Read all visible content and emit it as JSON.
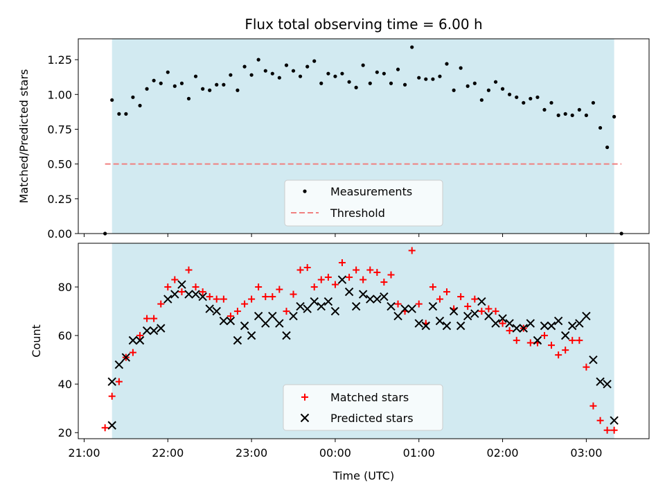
{
  "chart_data": {
    "type": "scatter",
    "title": "Flux total observing time = 6.00 h",
    "colors": {
      "observing_window": "#add8e6",
      "measurements": "#000000",
      "threshold": "#f08080",
      "matched": "#ff0000",
      "predicted": "#000000"
    },
    "shared_x": {
      "xlabel": "Time (UTC)",
      "tick_labels": [
        "21:00",
        "22:00",
        "23:00",
        "00:00",
        "01:00",
        "02:00",
        "03:00"
      ],
      "tick_hours": [
        0,
        1,
        2,
        3,
        4,
        5,
        6
      ],
      "hours_from_2100": [
        0.25,
        0.333,
        0.417,
        0.5,
        0.583,
        0.667,
        0.75,
        0.833,
        0.917,
        1.0,
        1.083,
        1.167,
        1.25,
        1.333,
        1.417,
        1.5,
        1.583,
        1.667,
        1.75,
        1.833,
        1.917,
        2.0,
        2.083,
        2.167,
        2.25,
        2.333,
        2.417,
        2.5,
        2.583,
        2.667,
        2.75,
        2.833,
        2.917,
        3.0,
        3.083,
        3.167,
        3.25,
        3.333,
        3.417,
        3.5,
        3.583,
        3.667,
        3.75,
        3.833,
        3.917,
        4.0,
        4.083,
        4.167,
        4.25,
        4.333,
        4.417,
        4.5,
        4.583,
        4.667,
        4.75,
        4.833,
        4.917,
        5.0,
        5.083,
        5.167,
        5.25,
        5.333,
        5.417,
        5.5,
        5.583,
        5.667,
        5.75,
        5.833,
        5.917,
        6.0,
        6.083,
        6.167,
        6.25,
        6.333
      ],
      "xlim": [
        -0.07,
        6.75
      ]
    },
    "observing_window_hours": [
      0.333,
      6.333
    ],
    "panels": [
      {
        "name": "ratio",
        "ylabel": "Matched/Predicted stars",
        "ylim": [
          0,
          1.4
        ],
        "yticks": [
          0.0,
          0.25,
          0.5,
          0.75,
          1.0,
          1.25
        ],
        "ytick_labels": [
          "0.00",
          "0.25",
          "0.50",
          "0.75",
          "1.00",
          "1.25"
        ],
        "threshold": {
          "value": 0.5,
          "x_range_hours": [
            0.25,
            6.42
          ]
        },
        "measurements": [
          0.0,
          0.96,
          0.86,
          0.86,
          0.98,
          0.92,
          1.04,
          1.1,
          1.08,
          1.16,
          1.06,
          1.08,
          0.97,
          1.13,
          1.04,
          1.03,
          1.07,
          1.07,
          1.14,
          1.03,
          1.2,
          1.14,
          1.25,
          1.17,
          1.15,
          1.12,
          1.21,
          1.17,
          1.13,
          1.2,
          1.24,
          1.08,
          1.15,
          1.13,
          1.15,
          1.09,
          1.05,
          1.21,
          1.08,
          1.16,
          1.15,
          1.08,
          1.18,
          1.07,
          1.34,
          1.12,
          1.11,
          1.11,
          1.13,
          1.22,
          1.03,
          1.19,
          1.06,
          1.08,
          0.96,
          1.03,
          1.09,
          1.04,
          1.0,
          0.98,
          0.94,
          0.97,
          0.98,
          0.89,
          0.94,
          0.85,
          0.86,
          0.85,
          0.89,
          0.85,
          0.94,
          0.76,
          0.62,
          0.84
        ],
        "extra_points": [
          {
            "x_hours": 6.42,
            "y": 0.0
          }
        ],
        "legend": [
          "Measurements",
          "Threshold"
        ]
      },
      {
        "name": "counts",
        "ylabel": "Count",
        "ylim": [
          17.5,
          98
        ],
        "yticks": [
          20,
          40,
          60,
          80
        ],
        "ytick_labels": [
          "20",
          "40",
          "60",
          "80"
        ],
        "matched": [
          22,
          35,
          41,
          51,
          53,
          60,
          67,
          67,
          73,
          80,
          83,
          78,
          87,
          80,
          78,
          76,
          75,
          75,
          68,
          70,
          73,
          75,
          80,
          76,
          76,
          79,
          70,
          77,
          87,
          88,
          80,
          83,
          84,
          81,
          90,
          84,
          87,
          83,
          87,
          86,
          82,
          85,
          73,
          70,
          95,
          73,
          65,
          80,
          75,
          78,
          71,
          76,
          72,
          75,
          70,
          71,
          70,
          65,
          62,
          58,
          63,
          57,
          57,
          60,
          56,
          52,
          54,
          58,
          58,
          47,
          31,
          25,
          21,
          21
        ],
        "predicted": [
          23,
          41,
          48,
          51,
          58,
          58,
          62,
          62,
          63,
          75,
          77,
          81,
          77,
          77,
          76,
          71,
          70,
          66,
          66,
          58,
          64,
          60,
          68,
          65,
          68,
          65,
          60,
          68,
          72,
          71,
          74,
          72,
          74,
          70,
          83,
          78,
          72,
          77,
          75,
          75,
          76,
          72,
          68,
          71,
          71,
          65,
          64,
          72,
          66,
          64,
          70,
          64,
          68,
          69,
          74,
          68,
          65,
          67,
          65,
          63,
          63,
          65,
          58,
          64,
          64,
          66,
          60,
          64,
          65,
          68,
          50,
          41,
          40,
          25
        ],
        "legend": [
          "Matched stars",
          "Predicted stars"
        ]
      }
    ]
  }
}
